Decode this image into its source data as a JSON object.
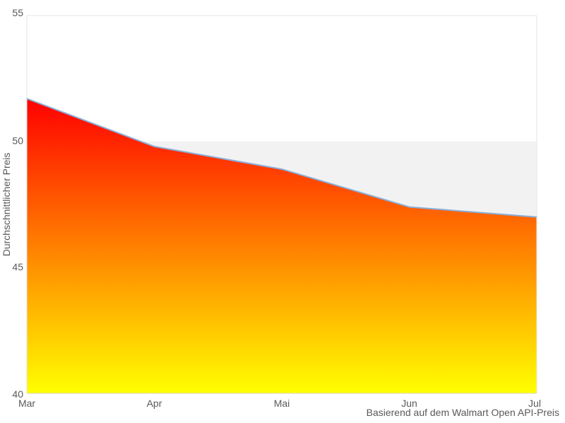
{
  "chart_data": {
    "type": "area",
    "title": "",
    "x_categories": [
      "Mar",
      "Apr",
      "Mai",
      "Jun",
      "Jul"
    ],
    "series": [
      {
        "name": "Durchschnittlicher Preis",
        "values": [
          51.7,
          49.8,
          48.9,
          47.4,
          47.0
        ]
      }
    ],
    "xlabel": "",
    "ylabel": "Durchschnittlicher Preis",
    "caption": "Basierend auf dem Walmart Open API-Preis",
    "ylim": [
      40,
      55
    ],
    "yticks": [
      55,
      50,
      45,
      40
    ],
    "grid": "off",
    "legend": "off",
    "plot_band": {
      "from": 40,
      "to": 50,
      "color": "#f2f2f2"
    },
    "colors": {
      "line": "#8aaed8",
      "gradient_top": "#ff0000",
      "gradient_bottom": "#ffff00",
      "band": "#f2f2f2",
      "border": "#e6e6e6",
      "axis_line": "#d6d6d6",
      "tick_text": "#595959",
      "caption_text": "#595959",
      "background": "#ffffff"
    }
  }
}
